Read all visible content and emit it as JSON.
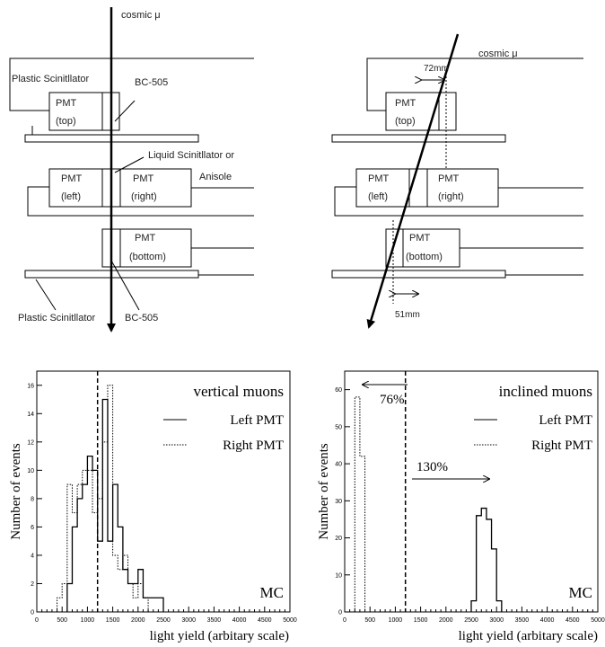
{
  "setup_left": {
    "muon_label": "cosmic μ",
    "plastic_top_label": "Plastic Scinitllator",
    "plastic_bottom_label": "Plastic Scinitllator",
    "bc505_top_label": "BC-505",
    "bc505_bottom_label": "BC-505",
    "liquid_label_line1": "Liquid Scinitllator or",
    "liquid_label_line2": "Anisole",
    "pmt_top": [
      "PMT",
      "(top)"
    ],
    "pmt_left": [
      "PMT",
      "(left)"
    ],
    "pmt_right": [
      "PMT",
      "(right)"
    ],
    "pmt_bottom": [
      "PMT",
      "(bottom)"
    ]
  },
  "setup_right": {
    "muon_label": "cosmic μ",
    "dist_top": "72mm",
    "dist_bottom": "51mm",
    "pmt_top": [
      "PMT",
      "(top)"
    ],
    "pmt_left": [
      "PMT",
      "(left)"
    ],
    "pmt_right": [
      "PMT",
      "(right)"
    ],
    "pmt_bottom": [
      "PMT",
      "(bottom)"
    ]
  },
  "chart_data": [
    {
      "type": "histogram",
      "title": "vertical muons",
      "tag": "MC",
      "xlabel": "light yield (arbitary scale)",
      "ylabel": "Number of events",
      "xlim": [
        0,
        5000
      ],
      "ylim": [
        0,
        17
      ],
      "x_ticks": [
        "0",
        "500",
        "1000",
        "1500",
        "2000",
        "2500",
        "3000",
        "3500",
        "4000",
        "4500",
        "5000"
      ],
      "y_ticks": [
        "0",
        "2",
        "4",
        "6",
        "8",
        "10",
        "12",
        "14",
        "16"
      ],
      "threshold_x": 1200,
      "legend_position": "top-right",
      "series": [
        {
          "name": "Left PMT",
          "style": "solid",
          "bins": [
            [
              600,
              700,
              2
            ],
            [
              700,
              800,
              6
            ],
            [
              800,
              900,
              8
            ],
            [
              900,
              1000,
              9
            ],
            [
              1000,
              1100,
              11
            ],
            [
              1100,
              1200,
              10
            ],
            [
              1200,
              1300,
              5
            ],
            [
              1300,
              1400,
              15
            ],
            [
              1400,
              1500,
              5
            ],
            [
              1500,
              1600,
              9
            ],
            [
              1600,
              1700,
              6
            ],
            [
              1700,
              1800,
              3
            ],
            [
              1800,
              1900,
              2
            ],
            [
              1900,
              2000,
              2
            ],
            [
              2000,
              2100,
              3
            ],
            [
              2100,
              2200,
              1
            ],
            [
              2200,
              2300,
              1
            ],
            [
              2300,
              2400,
              1
            ],
            [
              2400,
              2500,
              1
            ]
          ]
        },
        {
          "name": "Right PMT",
          "style": "dotted",
          "bins": [
            [
              400,
              500,
              1
            ],
            [
              500,
              600,
              2
            ],
            [
              600,
              700,
              9
            ],
            [
              700,
              800,
              7
            ],
            [
              800,
              900,
              9
            ],
            [
              900,
              1000,
              10
            ],
            [
              1000,
              1100,
              10
            ],
            [
              1100,
              1200,
              7
            ],
            [
              1200,
              1300,
              8
            ],
            [
              1300,
              1400,
              12
            ],
            [
              1400,
              1500,
              16
            ],
            [
              1500,
              1600,
              4
            ],
            [
              1600,
              1700,
              3
            ],
            [
              1700,
              1800,
              4
            ],
            [
              1800,
              1900,
              2
            ],
            [
              1900,
              2000,
              1
            ],
            [
              2000,
              2100,
              2
            ],
            [
              2100,
              2200,
              1
            ]
          ]
        }
      ]
    },
    {
      "type": "histogram",
      "title": "inclined muons",
      "tag": "MC",
      "xlabel": "light yield (arbitary scale)",
      "ylabel": "Number of events",
      "xlim": [
        0,
        5000
      ],
      "ylim": [
        0,
        65
      ],
      "x_ticks": [
        "0",
        "500",
        "1000",
        "1500",
        "2000",
        "2500",
        "3000",
        "3500",
        "4000",
        "4500",
        "5000"
      ],
      "y_ticks": [
        "0",
        "10",
        "20",
        "30",
        "40",
        "50",
        "60"
      ],
      "threshold_x": 1200,
      "legend_position": "top-right",
      "annotations": {
        "left_pct": "76%",
        "right_pct": "130%"
      },
      "series": [
        {
          "name": "Left PMT",
          "style": "solid",
          "bins": [
            [
              2500,
              2600,
              3
            ],
            [
              2600,
              2700,
              26
            ],
            [
              2700,
              2800,
              28
            ],
            [
              2800,
              2900,
              25
            ],
            [
              2900,
              3000,
              17
            ],
            [
              3000,
              3100,
              3
            ]
          ]
        },
        {
          "name": "Right PMT",
          "style": "dotted",
          "bins": [
            [
              200,
              300,
              58
            ],
            [
              300,
              400,
              42
            ]
          ]
        }
      ]
    }
  ]
}
